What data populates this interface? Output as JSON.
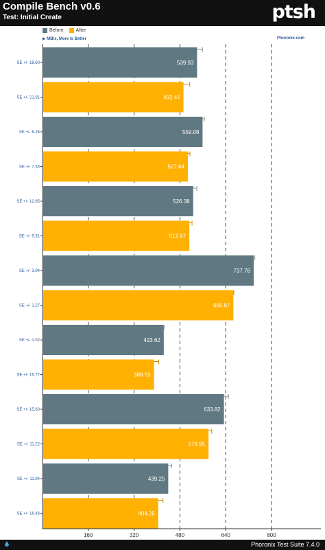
{
  "header": {
    "title": "Compile Bench v0.6",
    "subtitle": "Test: Initial Create",
    "logo_text": "ptsh"
  },
  "legend": {
    "items": [
      {
        "label": "Before",
        "color": "#5f7881"
      },
      {
        "label": "After",
        "color": "#ffb000"
      }
    ],
    "direction": "MB/s, More Is Better",
    "site": "Phoronix.com"
  },
  "footer": {
    "text": "Phoronix Test Suite 7.4.0"
  },
  "chart_data": {
    "type": "bar",
    "orientation": "horizontal",
    "title": "Compile Bench v0.6",
    "subtitle": "Test: Initial Create",
    "xlabel": "MB/s, More Is Better",
    "xlim": [
      0,
      900
    ],
    "xticks": [
      160,
      320,
      480,
      640,
      800
    ],
    "grid": true,
    "legend_position": "top-left",
    "series_colors": {
      "Before": "#5f7881",
      "After": "#ffb000"
    },
    "bars": [
      {
        "series": "Before",
        "value": 539.93,
        "se_label": "SE +/- 18.60",
        "err": 18.6
      },
      {
        "series": "After",
        "value": 492.47,
        "se_label": "SE +/- 21.91",
        "err": 21.91
      },
      {
        "series": "Before",
        "value": 559.08,
        "se_label": "SE +/- 6.26",
        "err": 6.26
      },
      {
        "series": "After",
        "value": 507.64,
        "se_label": "SE +/- 7.33",
        "err": 7.33
      },
      {
        "series": "Before",
        "value": 526.38,
        "se_label": "SE +/- 12.85",
        "err": 12.85
      },
      {
        "series": "After",
        "value": 512.97,
        "se_label": "SE +/- 9.31",
        "err": 9.31
      },
      {
        "series": "Before",
        "value": 737.76,
        "se_label": "SE +/- 3.94",
        "err": 3.94
      },
      {
        "series": "After",
        "value": 666.87,
        "se_label": "SE +/- 1.27",
        "err": 1.27
      },
      {
        "series": "Before",
        "value": 423.62,
        "se_label": "SE +/- 1.02",
        "err": 1.02
      },
      {
        "series": "After",
        "value": 389.53,
        "se_label": "SE +/- 16.77",
        "err": 16.77
      },
      {
        "series": "Before",
        "value": 633.82,
        "se_label": "SE +/- 15.60",
        "err": 15.6
      },
      {
        "series": "After",
        "value": 579.95,
        "se_label": "SE +/- 11.22",
        "err": 11.22
      },
      {
        "series": "Before",
        "value": 439.25,
        "se_label": "SE +/- 11.94",
        "err": 11.94
      },
      {
        "series": "After",
        "value": 404.25,
        "se_label": "SE +/- 16.46",
        "err": 16.46
      }
    ]
  }
}
